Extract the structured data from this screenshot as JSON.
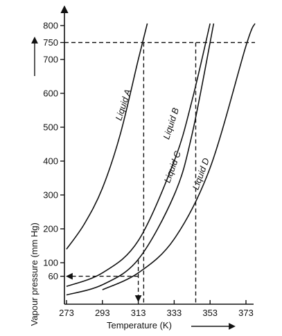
{
  "chart_data": {
    "type": "line",
    "xlabel": "Temperature (K)",
    "ylabel": "Vapour pressure (mm Hg)",
    "x_ticks": [
      273,
      293,
      313,
      333,
      353,
      373
    ],
    "y_ticks": [
      60,
      100,
      200,
      300,
      400,
      500,
      600,
      700,
      750,
      800
    ],
    "xlim": [
      273,
      380
    ],
    "ylim": [
      0,
      850
    ],
    "grid": false,
    "legend": "none",
    "series": [
      {
        "name": "Liquid A",
        "x": [
          273,
          283,
          293,
          303,
          313,
          318
        ],
        "y": [
          140,
          215,
          320,
          480,
          700,
          870
        ]
      },
      {
        "name": "Liquid B",
        "x": [
          273,
          293,
          313,
          333,
          343,
          353
        ],
        "y": [
          30,
          70,
          165,
          400,
          580,
          860
        ]
      },
      {
        "name": "Liquid C",
        "x": [
          273,
          293,
          313,
          333,
          343,
          355
        ],
        "y": [
          5,
          35,
          110,
          300,
          480,
          860
        ]
      },
      {
        "name": "Liquid D",
        "x": [
          293,
          313,
          333,
          353,
          373,
          378
        ],
        "y": [
          20,
          70,
          170,
          380,
          740,
          860
        ]
      }
    ],
    "reference_lines": [
      {
        "kind": "horizontal",
        "y": 750
      },
      {
        "kind": "vertical",
        "x": 316
      },
      {
        "kind": "vertical",
        "x": 345
      },
      {
        "kind": "horizontal",
        "y": 60
      },
      {
        "kind": "vertical",
        "x": 313
      }
    ]
  }
}
